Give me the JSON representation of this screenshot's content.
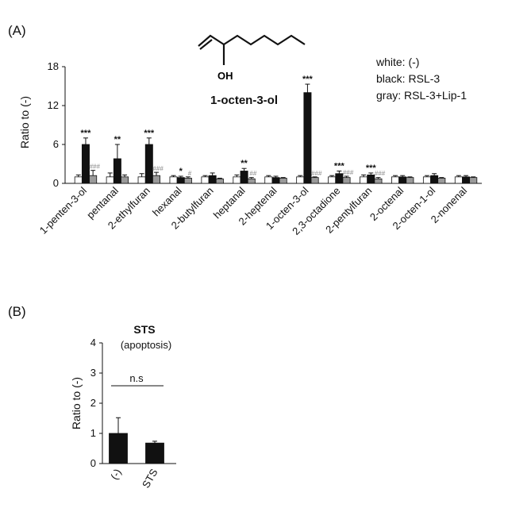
{
  "panel_a": {
    "label": "(A)",
    "legend": [
      "white: (-)",
      "black: RSL-3",
      "gray: RSL-3+Lip-1"
    ],
    "molecule": {
      "name": "1-octen-3-ol",
      "group_label": "OH"
    }
  },
  "panel_b": {
    "label": "(B)"
  },
  "colors": {
    "white": "#ffffff",
    "black": "#111111",
    "gray": "#9a9a9a"
  },
  "chart_data": [
    {
      "type": "bar",
      "ylabel": "Ratio to (-)",
      "ylim": [
        0,
        18
      ],
      "yticks": [
        0,
        6,
        12,
        18
      ],
      "categories": [
        "1-penten-3-ol",
        "pentanal",
        "2-ethylfuran",
        "hexanal",
        "2-butylfuran",
        "heptanal",
        "2-heptenal",
        "1-octen-3-ol",
        "2,3-octadione",
        "2-pentylfuran",
        "2-octenal",
        "2-octen-1-ol",
        "2-nonenal"
      ],
      "series": [
        {
          "name": "(-)",
          "values": [
            1.0,
            1.0,
            1.0,
            1.0,
            1.0,
            1.0,
            1.0,
            1.0,
            1.0,
            1.0,
            1.0,
            1.0,
            1.0
          ],
          "errors": [
            0.3,
            0.6,
            0.5,
            0.2,
            0.2,
            0.3,
            0.2,
            0.2,
            0.2,
            0.3,
            0.2,
            0.2,
            0.2
          ]
        },
        {
          "name": "RSL-3",
          "values": [
            6.0,
            3.8,
            6.0,
            0.9,
            1.2,
            1.9,
            0.9,
            14.0,
            1.5,
            1.3,
            1.0,
            1.2,
            1.0
          ],
          "errors": [
            1.0,
            2.2,
            1.0,
            0.2,
            0.4,
            0.4,
            0.2,
            1.3,
            0.4,
            0.3,
            0.2,
            0.3,
            0.2
          ]
        },
        {
          "name": "RSL-3+Lip-1",
          "values": [
            1.2,
            1.0,
            1.2,
            0.8,
            0.7,
            0.7,
            0.8,
            0.9,
            0.9,
            0.7,
            0.9,
            0.8,
            0.9
          ],
          "errors": [
            0.8,
            0.3,
            0.5,
            0.2,
            0.1,
            0.2,
            0.1,
            0.1,
            0.2,
            0.2,
            0.1,
            0.1,
            0.1
          ]
        }
      ],
      "annotations": {
        "stars": [
          "***",
          "**",
          "***",
          "*",
          "",
          "**",
          "",
          "***",
          "***",
          "***",
          "",
          "",
          ""
        ],
        "hashes": [
          "###",
          "",
          "###",
          "#",
          "",
          "##",
          "",
          "###",
          "###",
          "###",
          "",
          "",
          ""
        ]
      }
    },
    {
      "type": "bar",
      "title": "STS",
      "subtitle": "(apoptosis)",
      "ylabel": "Ratio to (-)",
      "ylim": [
        0,
        4
      ],
      "yticks": [
        0,
        1,
        2,
        3,
        4
      ],
      "categories": [
        "(-)",
        "STS"
      ],
      "values": [
        1.0,
        0.68
      ],
      "errors": [
        0.52,
        0.06
      ],
      "annotation": "n.s"
    }
  ]
}
